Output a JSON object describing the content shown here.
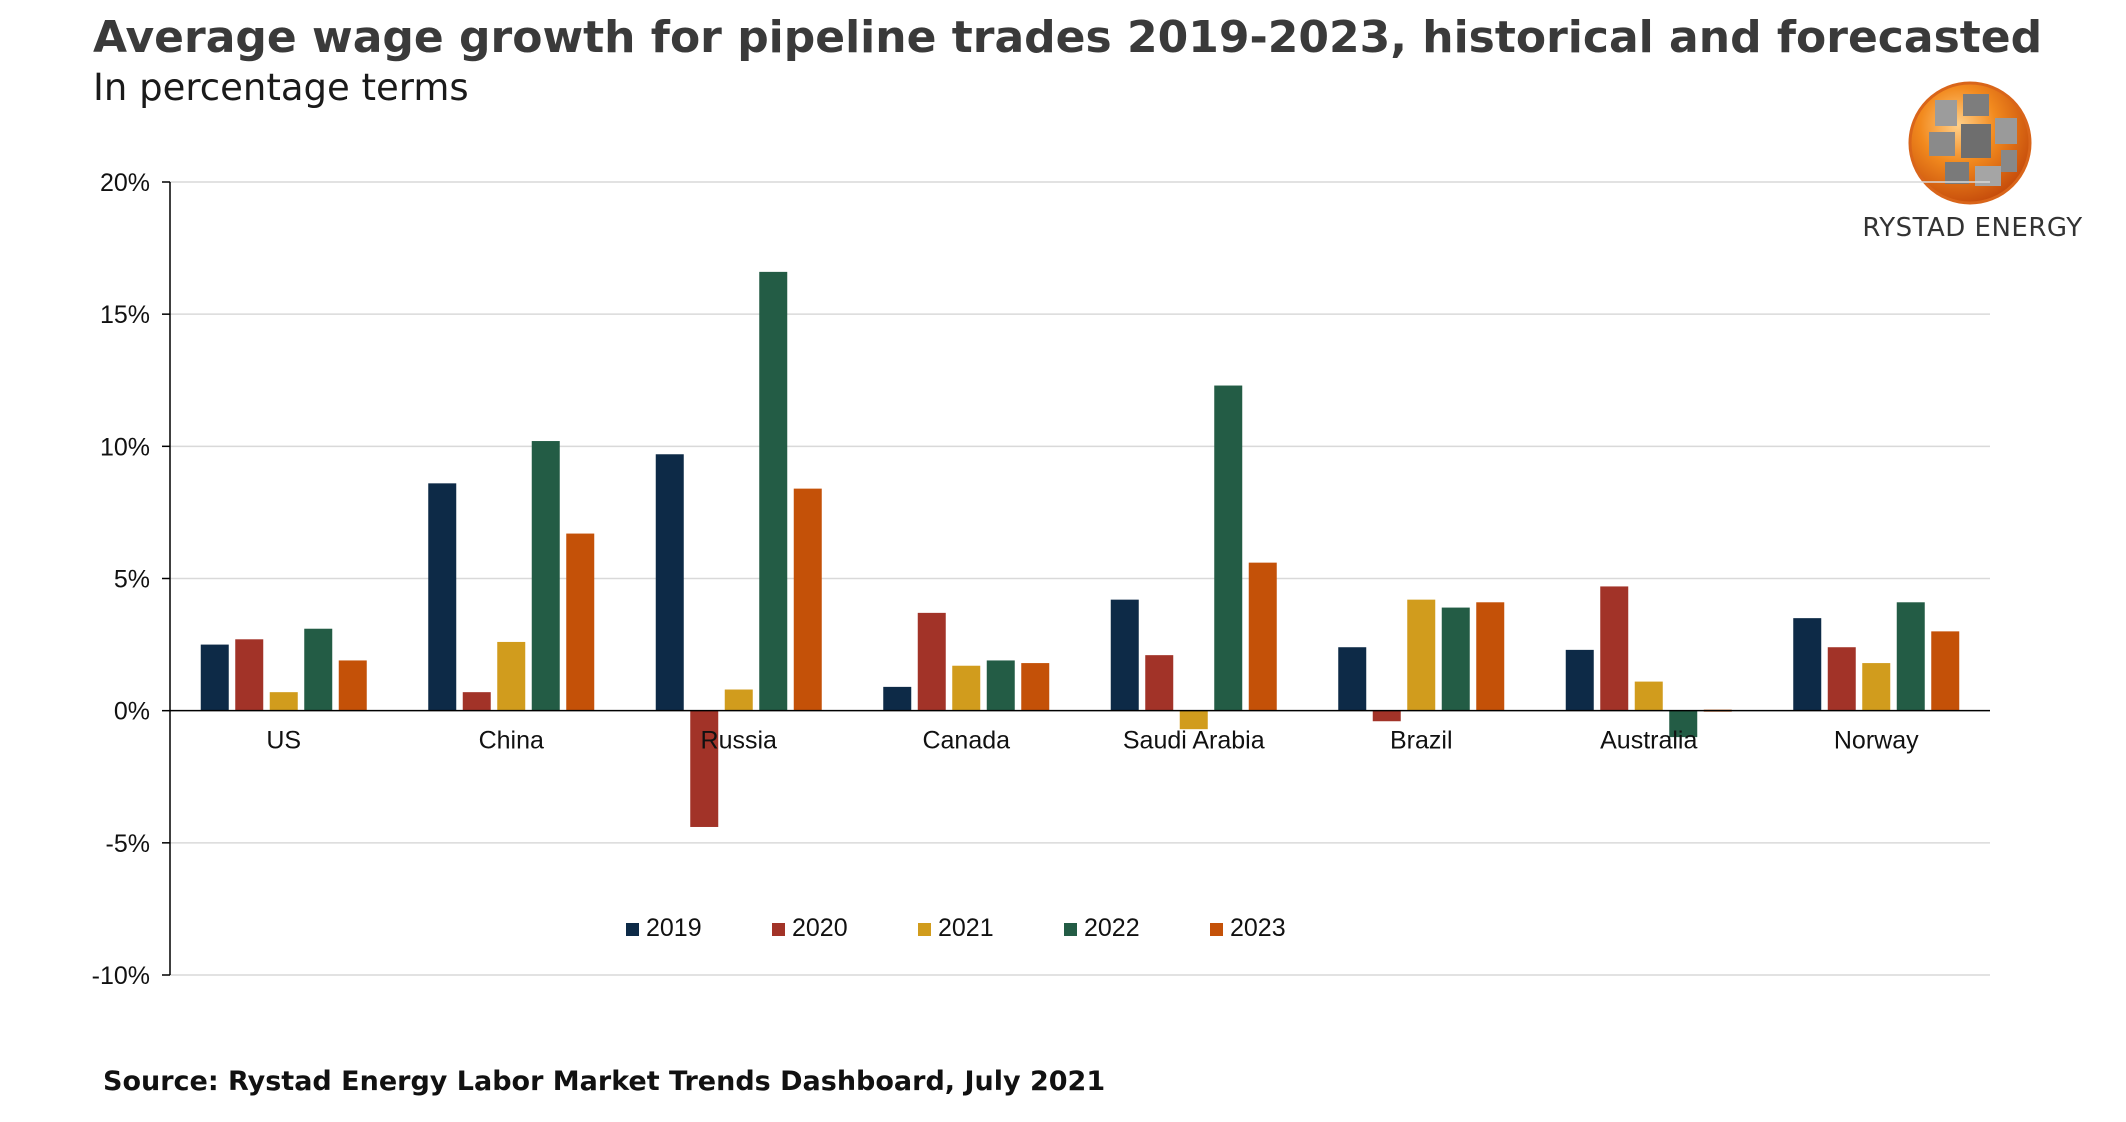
{
  "header": {
    "title": "Average wage growth for pipeline trades 2019-2023, historical and forecasted",
    "subtitle": "In percentage terms"
  },
  "logo": {
    "text": "RYSTAD ENERGY"
  },
  "footer": {
    "source": "Source: Rystad Energy Labor Market Trends Dashboard, July 2021"
  },
  "colors": {
    "2019": "#0d2a47",
    "2020": "#a23328",
    "2021": "#d19c1d",
    "2022": "#235c45",
    "2023": "#c45108",
    "grid": "#d9d9d9",
    "axis": "#000000"
  },
  "chart_data": {
    "type": "bar",
    "title": "Average wage growth for pipeline trades 2019-2023, historical and forecasted",
    "subtitle": "In percentage terms",
    "xlabel": "",
    "ylabel": "",
    "ylim": [
      -10,
      20
    ],
    "yticks": [
      20,
      15,
      10,
      5,
      0,
      -5,
      -10
    ],
    "ytick_labels": [
      "20%",
      "15%",
      "10%",
      "5%",
      "0%",
      "-5%",
      "-10%"
    ],
    "grid": true,
    "legend_position": "bottom-center-inside",
    "categories": [
      "US",
      "China",
      "Russia",
      "Canada",
      "Saudi Arabia",
      "Brazil",
      "Australia",
      "Norway"
    ],
    "series": [
      {
        "name": "2019",
        "values": [
          2.5,
          8.6,
          9.7,
          0.9,
          4.2,
          2.4,
          2.3,
          3.5
        ]
      },
      {
        "name": "2020",
        "values": [
          2.7,
          0.7,
          -4.4,
          3.7,
          2.1,
          -0.4,
          4.7,
          2.4
        ]
      },
      {
        "name": "2021",
        "values": [
          0.7,
          2.6,
          0.8,
          1.7,
          -0.7,
          4.2,
          1.1,
          1.8
        ]
      },
      {
        "name": "2022",
        "values": [
          3.1,
          10.2,
          16.6,
          1.9,
          12.3,
          3.9,
          -1.0,
          4.1
        ]
      },
      {
        "name": "2023",
        "values": [
          1.9,
          6.7,
          8.4,
          1.8,
          5.6,
          4.1,
          0.0,
          3.0
        ]
      }
    ]
  }
}
